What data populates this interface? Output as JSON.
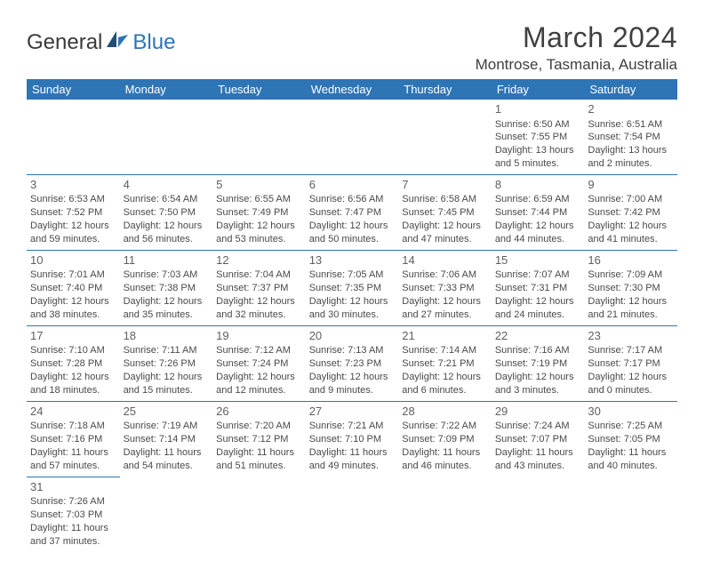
{
  "brand": {
    "part1": "General",
    "part2": "Blue"
  },
  "title": "March 2024",
  "location": "Montrose, Tasmania, Australia",
  "colors": {
    "header_bg": "#2e75b6",
    "divider": "#2e75b6",
    "text": "#4a4a4a",
    "title": "#404040"
  },
  "days": [
    "Sunday",
    "Monday",
    "Tuesday",
    "Wednesday",
    "Thursday",
    "Friday",
    "Saturday"
  ],
  "weeks": [
    [
      null,
      null,
      null,
      null,
      null,
      {
        "n": "1",
        "sr": "Sunrise: 6:50 AM",
        "ss": "Sunset: 7:55 PM",
        "dl1": "Daylight: 13 hours",
        "dl2": "and 5 minutes."
      },
      {
        "n": "2",
        "sr": "Sunrise: 6:51 AM",
        "ss": "Sunset: 7:54 PM",
        "dl1": "Daylight: 13 hours",
        "dl2": "and 2 minutes."
      }
    ],
    [
      {
        "n": "3",
        "sr": "Sunrise: 6:53 AM",
        "ss": "Sunset: 7:52 PM",
        "dl1": "Daylight: 12 hours",
        "dl2": "and 59 minutes."
      },
      {
        "n": "4",
        "sr": "Sunrise: 6:54 AM",
        "ss": "Sunset: 7:50 PM",
        "dl1": "Daylight: 12 hours",
        "dl2": "and 56 minutes."
      },
      {
        "n": "5",
        "sr": "Sunrise: 6:55 AM",
        "ss": "Sunset: 7:49 PM",
        "dl1": "Daylight: 12 hours",
        "dl2": "and 53 minutes."
      },
      {
        "n": "6",
        "sr": "Sunrise: 6:56 AM",
        "ss": "Sunset: 7:47 PM",
        "dl1": "Daylight: 12 hours",
        "dl2": "and 50 minutes."
      },
      {
        "n": "7",
        "sr": "Sunrise: 6:58 AM",
        "ss": "Sunset: 7:45 PM",
        "dl1": "Daylight: 12 hours",
        "dl2": "and 47 minutes."
      },
      {
        "n": "8",
        "sr": "Sunrise: 6:59 AM",
        "ss": "Sunset: 7:44 PM",
        "dl1": "Daylight: 12 hours",
        "dl2": "and 44 minutes."
      },
      {
        "n": "9",
        "sr": "Sunrise: 7:00 AM",
        "ss": "Sunset: 7:42 PM",
        "dl1": "Daylight: 12 hours",
        "dl2": "and 41 minutes."
      }
    ],
    [
      {
        "n": "10",
        "sr": "Sunrise: 7:01 AM",
        "ss": "Sunset: 7:40 PM",
        "dl1": "Daylight: 12 hours",
        "dl2": "and 38 minutes."
      },
      {
        "n": "11",
        "sr": "Sunrise: 7:03 AM",
        "ss": "Sunset: 7:38 PM",
        "dl1": "Daylight: 12 hours",
        "dl2": "and 35 minutes."
      },
      {
        "n": "12",
        "sr": "Sunrise: 7:04 AM",
        "ss": "Sunset: 7:37 PM",
        "dl1": "Daylight: 12 hours",
        "dl2": "and 32 minutes."
      },
      {
        "n": "13",
        "sr": "Sunrise: 7:05 AM",
        "ss": "Sunset: 7:35 PM",
        "dl1": "Daylight: 12 hours",
        "dl2": "and 30 minutes."
      },
      {
        "n": "14",
        "sr": "Sunrise: 7:06 AM",
        "ss": "Sunset: 7:33 PM",
        "dl1": "Daylight: 12 hours",
        "dl2": "and 27 minutes."
      },
      {
        "n": "15",
        "sr": "Sunrise: 7:07 AM",
        "ss": "Sunset: 7:31 PM",
        "dl1": "Daylight: 12 hours",
        "dl2": "and 24 minutes."
      },
      {
        "n": "16",
        "sr": "Sunrise: 7:09 AM",
        "ss": "Sunset: 7:30 PM",
        "dl1": "Daylight: 12 hours",
        "dl2": "and 21 minutes."
      }
    ],
    [
      {
        "n": "17",
        "sr": "Sunrise: 7:10 AM",
        "ss": "Sunset: 7:28 PM",
        "dl1": "Daylight: 12 hours",
        "dl2": "and 18 minutes."
      },
      {
        "n": "18",
        "sr": "Sunrise: 7:11 AM",
        "ss": "Sunset: 7:26 PM",
        "dl1": "Daylight: 12 hours",
        "dl2": "and 15 minutes."
      },
      {
        "n": "19",
        "sr": "Sunrise: 7:12 AM",
        "ss": "Sunset: 7:24 PM",
        "dl1": "Daylight: 12 hours",
        "dl2": "and 12 minutes."
      },
      {
        "n": "20",
        "sr": "Sunrise: 7:13 AM",
        "ss": "Sunset: 7:23 PM",
        "dl1": "Daylight: 12 hours",
        "dl2": "and 9 minutes."
      },
      {
        "n": "21",
        "sr": "Sunrise: 7:14 AM",
        "ss": "Sunset: 7:21 PM",
        "dl1": "Daylight: 12 hours",
        "dl2": "and 6 minutes."
      },
      {
        "n": "22",
        "sr": "Sunrise: 7:16 AM",
        "ss": "Sunset: 7:19 PM",
        "dl1": "Daylight: 12 hours",
        "dl2": "and 3 minutes."
      },
      {
        "n": "23",
        "sr": "Sunrise: 7:17 AM",
        "ss": "Sunset: 7:17 PM",
        "dl1": "Daylight: 12 hours",
        "dl2": "and 0 minutes."
      }
    ],
    [
      {
        "n": "24",
        "sr": "Sunrise: 7:18 AM",
        "ss": "Sunset: 7:16 PM",
        "dl1": "Daylight: 11 hours",
        "dl2": "and 57 minutes."
      },
      {
        "n": "25",
        "sr": "Sunrise: 7:19 AM",
        "ss": "Sunset: 7:14 PM",
        "dl1": "Daylight: 11 hours",
        "dl2": "and 54 minutes."
      },
      {
        "n": "26",
        "sr": "Sunrise: 7:20 AM",
        "ss": "Sunset: 7:12 PM",
        "dl1": "Daylight: 11 hours",
        "dl2": "and 51 minutes."
      },
      {
        "n": "27",
        "sr": "Sunrise: 7:21 AM",
        "ss": "Sunset: 7:10 PM",
        "dl1": "Daylight: 11 hours",
        "dl2": "and 49 minutes."
      },
      {
        "n": "28",
        "sr": "Sunrise: 7:22 AM",
        "ss": "Sunset: 7:09 PM",
        "dl1": "Daylight: 11 hours",
        "dl2": "and 46 minutes."
      },
      {
        "n": "29",
        "sr": "Sunrise: 7:24 AM",
        "ss": "Sunset: 7:07 PM",
        "dl1": "Daylight: 11 hours",
        "dl2": "and 43 minutes."
      },
      {
        "n": "30",
        "sr": "Sunrise: 7:25 AM",
        "ss": "Sunset: 7:05 PM",
        "dl1": "Daylight: 11 hours",
        "dl2": "and 40 minutes."
      }
    ],
    [
      {
        "n": "31",
        "sr": "Sunrise: 7:26 AM",
        "ss": "Sunset: 7:03 PM",
        "dl1": "Daylight: 11 hours",
        "dl2": "and 37 minutes."
      },
      null,
      null,
      null,
      null,
      null,
      null
    ]
  ]
}
